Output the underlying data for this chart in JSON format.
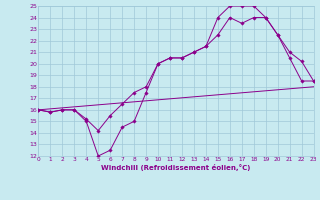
{
  "background_color": "#c8eaf0",
  "grid_color": "#a0c8d8",
  "line_color": "#8b008b",
  "marker_color": "#8b008b",
  "xlabel": "Windchill (Refroidissement éolien,°C)",
  "xlabel_color": "#8b008b",
  "ylabel_ticks": [
    12,
    13,
    14,
    15,
    16,
    17,
    18,
    19,
    20,
    21,
    22,
    23,
    24,
    25
  ],
  "xtick_labels": [
    "0",
    "1",
    "2",
    "3",
    "4",
    "5",
    "6",
    "7",
    "8",
    "9",
    "10",
    "11",
    "12",
    "13",
    "14",
    "15",
    "16",
    "17",
    "18",
    "19",
    "20",
    "21",
    "22",
    "23"
  ],
  "xlim": [
    0,
    23
  ],
  "ylim": [
    12,
    25
  ],
  "series1_x": [
    0,
    1,
    2,
    3,
    4,
    5,
    6,
    7,
    8,
    9,
    10,
    11,
    12,
    13,
    14,
    15,
    16,
    17,
    18,
    19,
    20,
    21,
    22,
    23
  ],
  "series1_y": [
    16,
    15.8,
    16,
    16,
    15,
    12,
    12.5,
    14.5,
    15,
    17.5,
    20,
    20.5,
    20.5,
    21,
    21.5,
    24,
    25,
    25,
    25,
    24,
    22.5,
    20.5,
    18.5,
    18.5
  ],
  "series2_x": [
    0,
    1,
    2,
    3,
    4,
    5,
    6,
    7,
    8,
    9,
    10,
    11,
    12,
    13,
    14,
    15,
    16,
    17,
    18,
    19,
    20,
    21,
    22,
    23
  ],
  "series2_y": [
    16,
    15.8,
    16,
    16,
    15.2,
    14.2,
    15.5,
    16.5,
    17.5,
    18,
    20,
    20.5,
    20.5,
    21,
    21.5,
    22.5,
    24,
    23.5,
    24,
    24,
    22.5,
    21,
    20.2,
    18.5
  ],
  "series3_x": [
    0,
    23
  ],
  "series3_y": [
    16,
    18
  ]
}
